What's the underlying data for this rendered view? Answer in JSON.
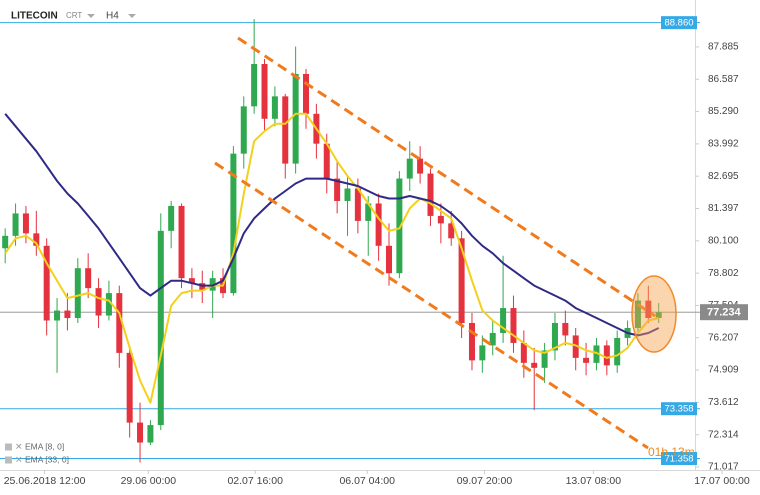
{
  "header": {
    "symbol": "LITECOIN",
    "chart_type": "CRT",
    "timeframe": "H4"
  },
  "chart_data": {
    "type": "candlestick",
    "up_color": "#2fa84f",
    "down_color": "#e4323e",
    "open": [
      79.8,
      80.3,
      81.2,
      80.4,
      79.9,
      76.9,
      77.3,
      77.0,
      79.0,
      78.2,
      77.1,
      78.0,
      75.6,
      72.8,
      72.0,
      72.7,
      80.5,
      81.5,
      78.6,
      78.4,
      78.1,
      78.6,
      78.0,
      83.6,
      85.5,
      87.2,
      85.0,
      85.9,
      83.2,
      86.8,
      85.2,
      84.0,
      82.6,
      81.7,
      82.2,
      80.9,
      81.6,
      79.9,
      78.8,
      82.6,
      83.4,
      82.8,
      81.1,
      80.8,
      80.2,
      76.8,
      75.3,
      75.9,
      76.4,
      77.4,
      76.0,
      75.2,
      75.0,
      75.7,
      76.8,
      76.3,
      75.4,
      75.2,
      75.9,
      75.1,
      76.2,
      76.6,
      77.7,
      77.0
    ],
    "high": [
      80.6,
      81.6,
      81.5,
      81.3,
      80.2,
      77.8,
      78.0,
      79.4,
      79.6,
      78.6,
      78.5,
      78.3,
      75.9,
      73.6,
      72.9,
      81.2,
      81.7,
      81.6,
      79.0,
      78.9,
      78.9,
      79.0,
      83.9,
      85.9,
      89.0,
      87.4,
      86.3,
      86.0,
      87.9,
      87.0,
      85.6,
      84.4,
      83.3,
      82.7,
      82.6,
      81.9,
      82.0,
      80.8,
      82.9,
      84.1,
      83.9,
      83.0,
      81.6,
      81.3,
      80.5,
      77.2,
      76.3,
      76.9,
      79.5,
      77.9,
      76.5,
      75.8,
      76.0,
      77.2,
      77.3,
      76.6,
      76.0,
      76.2,
      76.1,
      76.5,
      76.9,
      78.0,
      78.3,
      77.6
    ],
    "low": [
      79.2,
      79.9,
      80.0,
      79.5,
      76.3,
      74.8,
      76.5,
      76.8,
      77.8,
      76.6,
      76.9,
      75.0,
      72.2,
      71.2,
      71.9,
      72.5,
      79.8,
      78.2,
      77.8,
      77.6,
      77.0,
      77.8,
      77.9,
      83.0,
      85.2,
      84.5,
      84.7,
      82.6,
      82.8,
      84.6,
      83.4,
      82.0,
      81.2,
      80.3,
      80.4,
      79.5,
      79.3,
      78.3,
      78.6,
      82.1,
      82.4,
      80.7,
      80.0,
      79.9,
      76.2,
      74.9,
      74.8,
      75.5,
      76.0,
      75.6,
      74.6,
      73.3,
      74.4,
      75.3,
      75.9,
      74.9,
      74.7,
      74.9,
      74.7,
      74.8,
      75.9,
      76.4,
      76.8,
      76.8
    ],
    "close": [
      80.3,
      81.2,
      80.4,
      79.9,
      76.9,
      77.3,
      77.0,
      79.0,
      78.2,
      77.1,
      78.0,
      75.6,
      72.8,
      72.0,
      72.7,
      80.5,
      81.5,
      78.6,
      78.4,
      78.1,
      78.6,
      78.0,
      83.6,
      85.5,
      87.2,
      85.0,
      85.9,
      83.2,
      86.8,
      85.2,
      84.0,
      82.6,
      81.7,
      82.2,
      80.9,
      81.6,
      79.9,
      78.8,
      82.6,
      83.4,
      82.8,
      81.1,
      80.8,
      80.2,
      76.8,
      75.3,
      75.9,
      76.4,
      77.4,
      76.0,
      75.2,
      75.0,
      75.7,
      76.8,
      76.3,
      75.4,
      75.2,
      75.9,
      75.1,
      76.2,
      76.6,
      77.7,
      77.0,
      77.234
    ],
    "series": [
      {
        "name": "EMA [8, 0]",
        "color": "#f3d11a",
        "values": [
          79.6,
          80.2,
          80.3,
          80.0,
          79.2,
          78.5,
          77.8,
          77.9,
          78.0,
          77.8,
          77.7,
          77.2,
          75.8,
          74.5,
          73.6,
          75.5,
          77.5,
          78.0,
          78.1,
          78.1,
          78.3,
          78.3,
          79.6,
          82.0,
          84.1,
          84.5,
          84.8,
          84.8,
          85.2,
          85.2,
          84.6,
          84.0,
          83.3,
          82.7,
          82.2,
          81.6,
          81.0,
          80.5,
          80.6,
          81.4,
          81.8,
          81.6,
          81.3,
          81.0,
          79.8,
          78.5,
          77.3,
          76.9,
          76.6,
          76.3,
          76.0,
          75.7,
          75.6,
          75.8,
          76.0,
          75.9,
          75.7,
          75.6,
          75.4,
          75.5,
          75.8,
          76.4,
          76.9,
          77.0
        ]
      },
      {
        "name": "EMA [33, 0]",
        "color": "#2f2a86",
        "values": [
          85.2,
          84.7,
          84.2,
          83.7,
          83.1,
          82.5,
          82.0,
          81.6,
          81.1,
          80.6,
          80.0,
          79.4,
          78.8,
          78.2,
          77.9,
          78.2,
          78.5,
          78.5,
          78.4,
          78.3,
          78.3,
          78.5,
          79.4,
          80.4,
          81.0,
          81.4,
          81.8,
          82.1,
          82.4,
          82.6,
          82.6,
          82.6,
          82.5,
          82.4,
          82.3,
          82.1,
          81.9,
          81.8,
          81.8,
          81.9,
          81.8,
          81.7,
          81.5,
          81.2,
          80.8,
          80.3,
          79.9,
          79.6,
          79.2,
          78.9,
          78.6,
          78.3,
          78.1,
          77.9,
          77.7,
          77.4,
          77.2,
          77.0,
          76.8,
          76.6,
          76.4,
          76.3,
          76.4,
          76.6
        ]
      }
    ],
    "xlim": [
      -0.5,
      66.5
    ],
    "xticks": [
      {
        "value": 3.8,
        "label": "25.06.2018 12:00"
      },
      {
        "value": 13.8,
        "label": "29.06 00:00"
      },
      {
        "value": 24.1,
        "label": "02.07 16:00"
      },
      {
        "value": 34.9,
        "label": "06.07 04:00"
      },
      {
        "value": 46.2,
        "label": "09.07 20:00"
      },
      {
        "value": 56.7,
        "label": "13.07 08:00"
      },
      {
        "value": 69.1,
        "label": "17.07 00:00"
      }
    ],
    "ylim": [
      70.897,
      89.77
    ],
    "yticks": [
      87.885,
      86.587,
      {
        "value": 85.29,
        "label": "85.290"
      },
      83.992,
      82.695,
      81.397,
      {
        "value": 80.1,
        "label": "80.100"
      },
      78.802,
      77.504,
      76.207,
      74.909,
      73.612,
      72.314,
      71.017
    ],
    "price_lines": [
      {
        "value": 88.86,
        "label": "88.860"
      },
      {
        "value": 73.358,
        "label": "73.358"
      },
      {
        "value": 71.358,
        "label": "71.358"
      }
    ],
    "price_line_color": "#35a9e6",
    "last_price": 77.234,
    "last_price_color": "#8a8a8a",
    "timer": "01h 13m"
  }
}
